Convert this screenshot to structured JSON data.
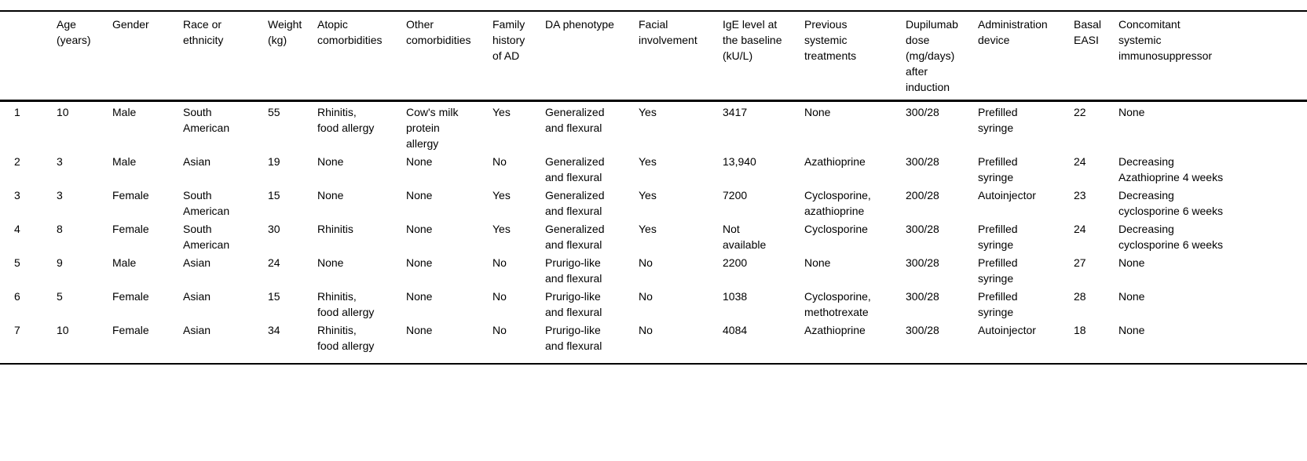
{
  "colors": {
    "text": "#000000",
    "background": "#ffffff",
    "rule": "#000000"
  },
  "table": {
    "name": "patient-baseline-characteristics",
    "columns": [
      "",
      "Age (years)",
      "Gender",
      "Race or ethnicity",
      "Weight (kg)",
      "Atopic comorbidities",
      "Other comorbidities",
      "Family history of AD",
      "DA phenotype",
      "Facial involvement",
      "IgE level at the baseline (kU/L)",
      "Previous systemic treatments",
      "Dupilumab dose (mg/days) after induction",
      "Administration device",
      "Basal EASI",
      "Concomitant systemic immunosuppressor"
    ],
    "rows": [
      [
        "1",
        "10",
        "Male",
        "South American",
        "55",
        "Rhinitis, food allergy",
        "Cow's milk protein allergy",
        "Yes",
        "Generalized and flexural",
        "Yes",
        "3417",
        "None",
        "300/28",
        "Prefilled syringe",
        "22",
        "None"
      ],
      [
        "2",
        "3",
        "Male",
        "Asian",
        "19",
        "None",
        "None",
        "No",
        "Generalized and flexural",
        "Yes",
        "13,940",
        "Azathioprine",
        "300/28",
        "Prefilled syringe",
        "24",
        "Decreasing Azathioprine 4 weeks"
      ],
      [
        "3",
        "3",
        "Female",
        "South American",
        "15",
        "None",
        "None",
        "Yes",
        "Generalized and flexural",
        "Yes",
        "7200",
        "Cyclosporine, azathioprine",
        "200/28",
        "Autoinjector",
        "23",
        "Decreasing cyclosporine 6 weeks"
      ],
      [
        "4",
        "8",
        "Female",
        "South American",
        "30",
        "Rhinitis",
        "None",
        "Yes",
        "Generalized and flexural",
        "Yes",
        "Not available",
        "Cyclosporine",
        "300/28",
        "Prefilled syringe",
        "24",
        "Decreasing cyclosporine 6 weeks"
      ],
      [
        "5",
        "9",
        "Male",
        "Asian",
        "24",
        "None",
        "None",
        "No",
        "Prurigo-like and flexural",
        "No",
        "2200",
        "None",
        "300/28",
        "Prefilled syringe",
        "27",
        "None"
      ],
      [
        "6",
        "5",
        "Female",
        "Asian",
        "15",
        "Rhinitis, food allergy",
        "None",
        "No",
        "Prurigo-like and flexural",
        "No",
        "1038",
        "Cyclosporine, methotrexate",
        "300/28",
        "Prefilled syringe",
        "28",
        "None"
      ],
      [
        "7",
        "10",
        "Female",
        "Asian",
        "34",
        "Rhinitis, food allergy",
        "None",
        "No",
        "Prurigo-like and flexural",
        "No",
        "4084",
        "Azathioprine",
        "300/28",
        "Autoinjector",
        "18",
        "None"
      ]
    ]
  }
}
